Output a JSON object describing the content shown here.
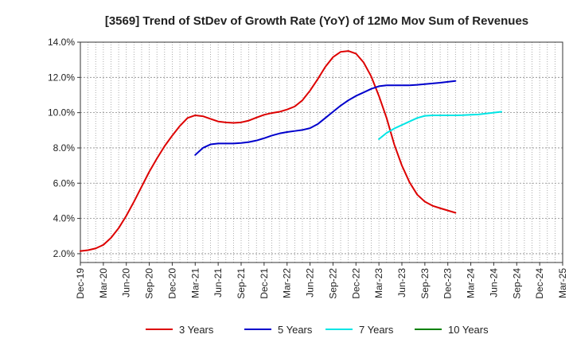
{
  "chart_data": {
    "type": "line",
    "title": "[3569]  Trend of StDev of Growth Rate (YoY) of 12Mo Mov Sum of Revenues",
    "xlabel": "",
    "ylabel": "",
    "ylim": [
      1.5,
      14.0
    ],
    "y_ticks": [
      2.0,
      4.0,
      6.0,
      8.0,
      10.0,
      12.0,
      14.0
    ],
    "y_tick_labels": [
      "2.0%",
      "4.0%",
      "6.0%",
      "8.0%",
      "10.0%",
      "12.0%",
      "14.0%"
    ],
    "x_tick_labels": [
      "Dec-19",
      "Mar-20",
      "Jun-20",
      "Sep-20",
      "Dec-20",
      "Mar-21",
      "Jun-21",
      "Sep-21",
      "Dec-21",
      "Mar-22",
      "Jun-22",
      "Sep-22",
      "Dec-22",
      "Mar-23",
      "Jun-23",
      "Sep-23",
      "Dec-23",
      "Mar-24",
      "Jun-24",
      "Sep-24",
      "Dec-24",
      "Mar-25"
    ],
    "grid": true,
    "legend_position": "bottom",
    "series": [
      {
        "name": "3 Years",
        "color": "#dd0000",
        "start_month": 0,
        "values": [
          2.15,
          2.2,
          2.3,
          2.5,
          2.9,
          3.45,
          4.15,
          4.95,
          5.8,
          6.65,
          7.4,
          8.1,
          8.7,
          9.25,
          9.7,
          9.85,
          9.8,
          9.65,
          9.5,
          9.45,
          9.42,
          9.45,
          9.55,
          9.72,
          9.88,
          9.98,
          10.05,
          10.18,
          10.35,
          10.7,
          11.25,
          11.9,
          12.6,
          13.15,
          13.45,
          13.5,
          13.35,
          12.85,
          12.05,
          10.95,
          9.7,
          8.2,
          7.0,
          6.05,
          5.35,
          4.95,
          4.72,
          4.58,
          4.45,
          4.32
        ]
      },
      {
        "name": "5 Years",
        "color": "#0000cc",
        "start_month": 15,
        "values": [
          7.6,
          8.0,
          8.2,
          8.25,
          8.25,
          8.25,
          8.28,
          8.33,
          8.42,
          8.55,
          8.7,
          8.82,
          8.9,
          8.96,
          9.02,
          9.12,
          9.35,
          9.7,
          10.05,
          10.4,
          10.7,
          10.95,
          11.15,
          11.35,
          11.5,
          11.55,
          11.55,
          11.55,
          11.55,
          11.58,
          11.62,
          11.66,
          11.7,
          11.75,
          11.8
        ]
      },
      {
        "name": "7 Years",
        "color": "#00e5e5",
        "start_month": 39,
        "values": [
          8.5,
          8.85,
          9.1,
          9.3,
          9.5,
          9.7,
          9.82,
          9.85,
          9.85,
          9.85,
          9.85,
          9.86,
          9.88,
          9.9,
          9.95,
          10.0,
          10.05
        ]
      },
      {
        "name": "10 Years",
        "color": "#008000",
        "start_month": 0,
        "values": []
      }
    ]
  }
}
